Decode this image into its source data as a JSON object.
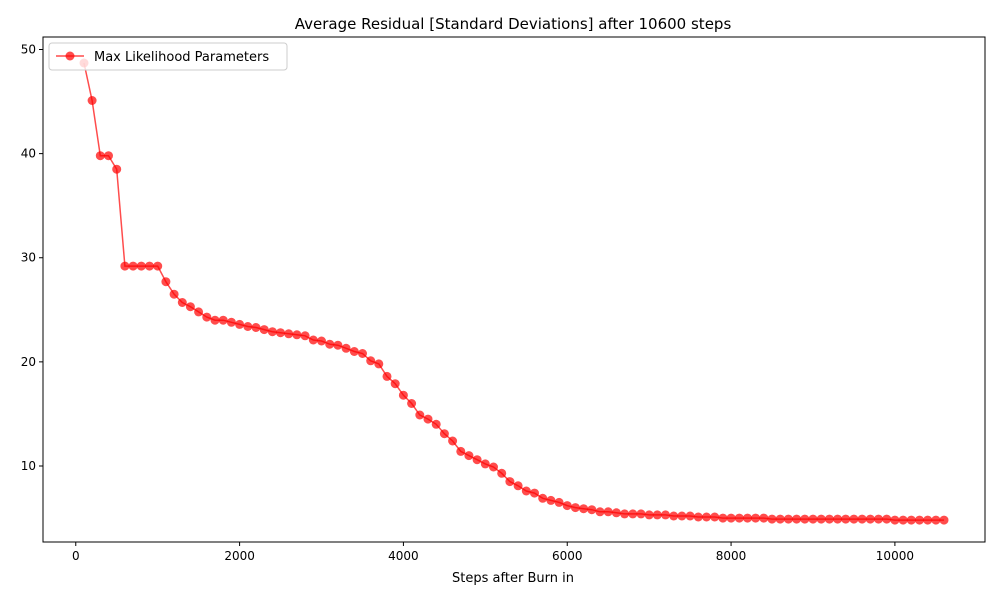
{
  "chart_data": {
    "type": "line",
    "title": "Average Residual [Standard Deviations] after 10600 steps",
    "xlabel": "Steps after Burn in",
    "ylabel": "",
    "xlim": [
      -400,
      11100
    ],
    "ylim": [
      2.7,
      51.2
    ],
    "x_ticks": [
      0,
      2000,
      4000,
      6000,
      8000,
      10000
    ],
    "y_ticks": [
      10,
      20,
      30,
      40,
      50
    ],
    "grid": false,
    "legend_position": "top-left",
    "color": "#ff0000",
    "series": [
      {
        "name": "Max Likelihood Parameters",
        "x": [
          100,
          200,
          300,
          400,
          500,
          600,
          700,
          800,
          900,
          1000,
          1100,
          1200,
          1300,
          1400,
          1500,
          1600,
          1700,
          1800,
          1900,
          2000,
          2100,
          2200,
          2300,
          2400,
          2500,
          2600,
          2700,
          2800,
          2900,
          3000,
          3100,
          3200,
          3300,
          3400,
          3500,
          3600,
          3700,
          3800,
          3900,
          4000,
          4100,
          4200,
          4300,
          4400,
          4500,
          4600,
          4700,
          4800,
          4900,
          5000,
          5100,
          5200,
          5300,
          5400,
          5500,
          5600,
          5700,
          5800,
          5900,
          6000,
          6100,
          6200,
          6300,
          6400,
          6500,
          6600,
          6700,
          6800,
          6900,
          7000,
          7100,
          7200,
          7300,
          7400,
          7500,
          7600,
          7700,
          7800,
          7900,
          8000,
          8100,
          8200,
          8300,
          8400,
          8500,
          8600,
          8700,
          8800,
          8900,
          9000,
          9100,
          9200,
          9300,
          9400,
          9500,
          9600,
          9700,
          9800,
          9900,
          10000,
          10100,
          10200,
          10300,
          10400,
          10500,
          10600
        ],
        "y": [
          48.7,
          45.1,
          39.8,
          39.8,
          38.5,
          29.2,
          29.2,
          29.2,
          29.2,
          29.2,
          27.7,
          26.5,
          25.7,
          25.3,
          24.8,
          24.3,
          24.0,
          24.0,
          23.8,
          23.6,
          23.4,
          23.3,
          23.1,
          22.9,
          22.8,
          22.7,
          22.6,
          22.5,
          22.1,
          22.0,
          21.7,
          21.6,
          21.3,
          21.0,
          20.8,
          20.1,
          19.8,
          18.6,
          17.9,
          16.8,
          16.0,
          14.9,
          14.5,
          14.0,
          13.1,
          12.4,
          11.4,
          11.0,
          10.6,
          10.2,
          9.9,
          9.3,
          8.5,
          8.1,
          7.6,
          7.4,
          6.9,
          6.7,
          6.5,
          6.2,
          6.0,
          5.9,
          5.8,
          5.6,
          5.6,
          5.5,
          5.4,
          5.4,
          5.4,
          5.3,
          5.3,
          5.3,
          5.2,
          5.2,
          5.2,
          5.1,
          5.1,
          5.1,
          5.0,
          5.0,
          5.0,
          5.0,
          5.0,
          5.0,
          4.9,
          4.9,
          4.9,
          4.9,
          4.9,
          4.9,
          4.9,
          4.9,
          4.9,
          4.9,
          4.9,
          4.9,
          4.9,
          4.9,
          4.9,
          4.8,
          4.8,
          4.8,
          4.8,
          4.8,
          4.8,
          4.8
        ]
      }
    ]
  }
}
